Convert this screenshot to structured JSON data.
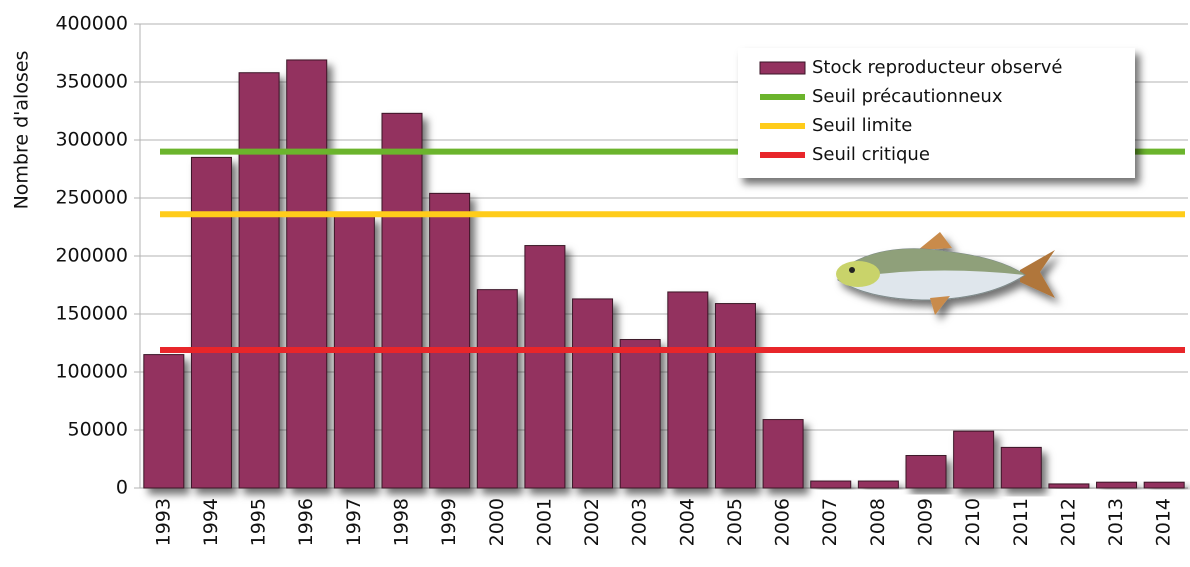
{
  "chart_data": {
    "type": "bar",
    "y_label": "Nombre d'aloses",
    "categories": [
      "1993",
      "1994",
      "1995",
      "1996",
      "1997",
      "1998",
      "1999",
      "2000",
      "2001",
      "2002",
      "2003",
      "2004",
      "2005",
      "2006",
      "2007",
      "2008",
      "2009",
      "2010",
      "2011",
      "2012",
      "2013",
      "2014"
    ],
    "series": [
      {
        "name": "Stock reproducteur observé",
        "color": "#93325f",
        "values": [
          115000,
          285000,
          358000,
          369000,
          234000,
          323000,
          254000,
          171000,
          209000,
          163000,
          128000,
          169000,
          159000,
          59000,
          6000,
          6000,
          28000,
          49000,
          35000,
          3500,
          5000,
          5000
        ]
      }
    ],
    "thresholds": [
      {
        "name": "Seuil précautionneux",
        "color": "#6bb42c",
        "value": 290000
      },
      {
        "name": "Seuil limite",
        "color": "#ffcc1a",
        "value": 236000
      },
      {
        "name": "Seuil critique",
        "color": "#e8262a",
        "value": 119000
      }
    ],
    "ylim": [
      0,
      400000
    ],
    "yticks": [
      0,
      50000,
      100000,
      150000,
      200000,
      250000,
      300000,
      350000,
      400000
    ],
    "grid": true
  }
}
